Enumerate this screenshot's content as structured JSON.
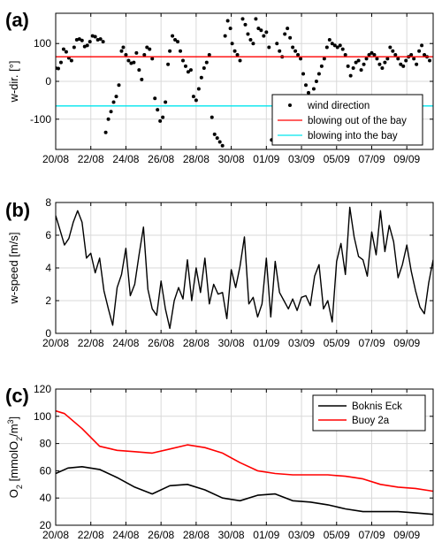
{
  "figure": {
    "panel_labels": [
      "(a)",
      "(b)",
      "(c)"
    ]
  },
  "chart_data": [
    {
      "type": "scatter",
      "panel": "(a)",
      "ylabel": "w-dir. [°]",
      "ylim": [
        -180,
        180
      ],
      "yticks": [
        100,
        0,
        -100
      ],
      "xlim": [
        0,
        21.5
      ],
      "xtick_labels": [
        "20/08",
        "22/08",
        "24/08",
        "26/08",
        "28/08",
        "30/08",
        "01/09",
        "03/09",
        "05/09",
        "07/09",
        "09/09"
      ],
      "grid": true,
      "legend_position": "bottom-right",
      "series": [
        {
          "name": "wind direction",
          "color": "#000000",
          "kind": "points",
          "x": [
            0.0,
            0.15,
            0.3,
            0.45,
            0.6,
            0.75,
            0.9,
            1.05,
            1.2,
            1.35,
            1.5,
            1.65,
            1.8,
            1.95,
            2.1,
            2.25,
            2.4,
            2.55,
            2.7,
            2.85,
            3.0,
            3.15,
            3.3,
            3.45,
            3.6,
            3.75,
            3.85,
            4.0,
            4.15,
            4.3,
            4.45,
            4.6,
            4.75,
            4.9,
            5.05,
            5.2,
            5.35,
            5.5,
            5.65,
            5.8,
            5.95,
            6.1,
            6.25,
            6.4,
            6.5,
            6.65,
            6.8,
            6.95,
            7.1,
            7.25,
            7.4,
            7.55,
            7.7,
            7.85,
            8.0,
            8.15,
            8.3,
            8.45,
            8.6,
            8.75,
            8.9,
            9.05,
            9.2,
            9.35,
            9.5,
            9.65,
            9.8,
            9.95,
            10.05,
            10.2,
            10.35,
            10.5,
            10.65,
            10.8,
            10.95,
            11.1,
            11.25,
            11.4,
            11.55,
            11.7,
            11.85,
            12.0,
            12.15,
            12.3,
            12.45,
            12.6,
            12.75,
            12.9,
            13.05,
            13.2,
            13.35,
            13.5,
            13.65,
            13.8,
            13.95,
            14.1,
            14.25,
            14.4,
            14.55,
            14.7,
            14.85,
            15.0,
            15.15,
            15.3,
            15.45,
            15.6,
            15.75,
            15.9,
            16.05,
            16.2,
            16.35,
            16.5,
            16.65,
            16.8,
            16.95,
            17.1,
            17.25,
            17.4,
            17.55,
            17.7,
            17.85,
            18.0,
            18.15,
            18.3,
            18.45,
            18.6,
            18.75,
            18.9,
            19.05,
            19.2,
            19.35,
            19.5,
            19.65,
            19.8,
            19.95,
            20.1,
            20.25,
            20.4,
            20.55,
            20.7,
            20.85,
            21.0,
            21.15,
            21.3
          ],
          "y": [
            35,
            34,
            50,
            85,
            78,
            62,
            55,
            90,
            110,
            112,
            108,
            92,
            95,
            105,
            120,
            118,
            110,
            112,
            105,
            -135,
            -100,
            -80,
            -55,
            -40,
            -10,
            80,
            90,
            70,
            55,
            48,
            50,
            75,
            30,
            5,
            70,
            90,
            85,
            60,
            -45,
            -75,
            -105,
            -95,
            -55,
            45,
            80,
            120,
            110,
            105,
            80,
            55,
            40,
            25,
            30,
            -40,
            -50,
            -20,
            10,
            35,
            50,
            70,
            -95,
            -140,
            -150,
            -160,
            -170,
            120,
            160,
            140,
            100,
            80,
            70,
            55,
            165,
            150,
            125,
            110,
            100,
            165,
            140,
            135,
            120,
            130,
            90,
            -155,
            -160,
            100,
            80,
            65,
            125,
            140,
            115,
            90,
            80,
            70,
            60,
            20,
            -10,
            -30,
            -40,
            -20,
            0,
            20,
            40,
            60,
            90,
            110,
            100,
            95,
            90,
            95,
            85,
            70,
            40,
            15,
            35,
            50,
            55,
            30,
            45,
            60,
            70,
            75,
            70,
            60,
            45,
            35,
            50,
            60,
            90,
            80,
            70,
            60,
            45,
            40,
            55,
            65,
            70,
            60,
            45,
            80,
            95,
            70,
            65,
            55
          ]
        },
        {
          "name": "blowing out of the bay",
          "color": "#ff0000",
          "kind": "hline",
          "y": 65
        },
        {
          "name": "blowing into the bay",
          "color": "#00e5ee",
          "kind": "hline",
          "y": -65
        }
      ]
    },
    {
      "type": "line",
      "panel": "(b)",
      "ylabel": "w-speed [m/s]",
      "ylim": [
        0,
        8
      ],
      "yticks": [
        0,
        2,
        4,
        6,
        8
      ],
      "xlim": [
        0,
        21.5
      ],
      "xtick_labels": [
        "20/08",
        "22/08",
        "24/08",
        "26/08",
        "28/08",
        "30/08",
        "01/09",
        "03/09",
        "05/09",
        "07/09",
        "09/09"
      ],
      "grid": true,
      "series": [
        {
          "name": "wind speed",
          "color": "#000000",
          "x": [
            0.0,
            0.25,
            0.5,
            0.75,
            1.0,
            1.25,
            1.5,
            1.75,
            2.0,
            2.25,
            2.5,
            2.75,
            3.0,
            3.25,
            3.5,
            3.75,
            4.0,
            4.25,
            4.5,
            4.75,
            5.0,
            5.25,
            5.5,
            5.75,
            6.0,
            6.25,
            6.5,
            6.75,
            7.0,
            7.25,
            7.5,
            7.75,
            8.0,
            8.25,
            8.5,
            8.75,
            9.0,
            9.25,
            9.5,
            9.75,
            10.0,
            10.25,
            10.5,
            10.75,
            11.0,
            11.25,
            11.5,
            11.75,
            12.0,
            12.25,
            12.5,
            12.75,
            13.0,
            13.25,
            13.5,
            13.75,
            14.0,
            14.25,
            14.5,
            14.75,
            15.0,
            15.25,
            15.5,
            15.75,
            16.0,
            16.25,
            16.5,
            16.75,
            17.0,
            17.25,
            17.5,
            17.75,
            18.0,
            18.25,
            18.5,
            18.75,
            19.0,
            19.25,
            19.5,
            19.75,
            20.0,
            20.25,
            20.5,
            20.75,
            21.0,
            21.25,
            21.5
          ],
          "y": [
            7.2,
            6.3,
            5.4,
            5.8,
            6.8,
            7.5,
            6.8,
            4.6,
            4.9,
            3.7,
            4.6,
            2.6,
            1.5,
            0.5,
            2.8,
            3.6,
            5.2,
            2.3,
            3.0,
            4.8,
            6.5,
            2.7,
            1.5,
            1.1,
            3.2,
            1.5,
            0.3,
            2.0,
            2.8,
            2.1,
            4.5,
            2.0,
            4.0,
            2.5,
            4.6,
            1.8,
            3.0,
            2.4,
            2.5,
            0.9,
            3.9,
            2.8,
            4.1,
            5.9,
            1.8,
            2.2,
            1.0,
            1.8,
            4.6,
            1.0,
            4.4,
            2.5,
            2.0,
            1.5,
            2.1,
            1.4,
            2.2,
            2.3,
            1.7,
            3.5,
            4.2,
            1.5,
            2.0,
            0.7,
            4.4,
            5.5,
            3.6,
            7.7,
            5.9,
            4.7,
            4.5,
            3.5,
            6.2,
            4.8,
            7.5,
            5.0,
            6.6,
            5.6,
            3.4,
            4.2,
            5.4,
            3.8,
            2.6,
            1.6,
            1.2,
            3.1,
            4.5
          ]
        }
      ]
    },
    {
      "type": "line",
      "panel": "(c)",
      "ylabel": "O2 [mmolO2/m3]",
      "ylim": [
        20,
        120
      ],
      "yticks": [
        20,
        40,
        60,
        80,
        100,
        120
      ],
      "xlim": [
        0,
        21.5
      ],
      "xtick_labels": [
        "20/08",
        "22/08",
        "24/08",
        "26/08",
        "28/08",
        "30/08",
        "01/09",
        "03/09",
        "05/09",
        "07/09",
        "09/09"
      ],
      "grid": true,
      "legend_position": "top-right",
      "series": [
        {
          "name": "Boknis Eck",
          "color": "#000000",
          "x": [
            0,
            0.7,
            1.5,
            2.5,
            3.5,
            4.5,
            5.5,
            6.5,
            7.5,
            8.5,
            9.5,
            10.5,
            11.5,
            12.5,
            13.5,
            14.5,
            15.5,
            16.5,
            17.5,
            18.5,
            19.5,
            20.5,
            21.5
          ],
          "y": [
            58,
            62,
            63,
            61,
            55,
            48,
            43,
            49,
            50,
            46,
            40,
            38,
            42,
            43,
            38,
            37,
            35,
            32,
            30,
            30,
            30,
            29,
            28
          ]
        },
        {
          "name": "Buoy 2a",
          "color": "#ff0000",
          "x": [
            0,
            0.5,
            1.5,
            2.5,
            3.5,
            4.5,
            5.5,
            6.5,
            7.5,
            8.5,
            9.5,
            10.5,
            11.5,
            12.5,
            13.5,
            14.5,
            15.5,
            16.5,
            17.5,
            18.5,
            19.5,
            20.5,
            21.5
          ],
          "y": [
            104,
            102,
            91,
            78,
            75,
            74,
            73,
            76,
            79,
            77,
            73,
            66,
            60,
            58,
            57,
            57,
            57,
            56,
            54,
            50,
            48,
            47,
            45
          ]
        }
      ]
    }
  ]
}
